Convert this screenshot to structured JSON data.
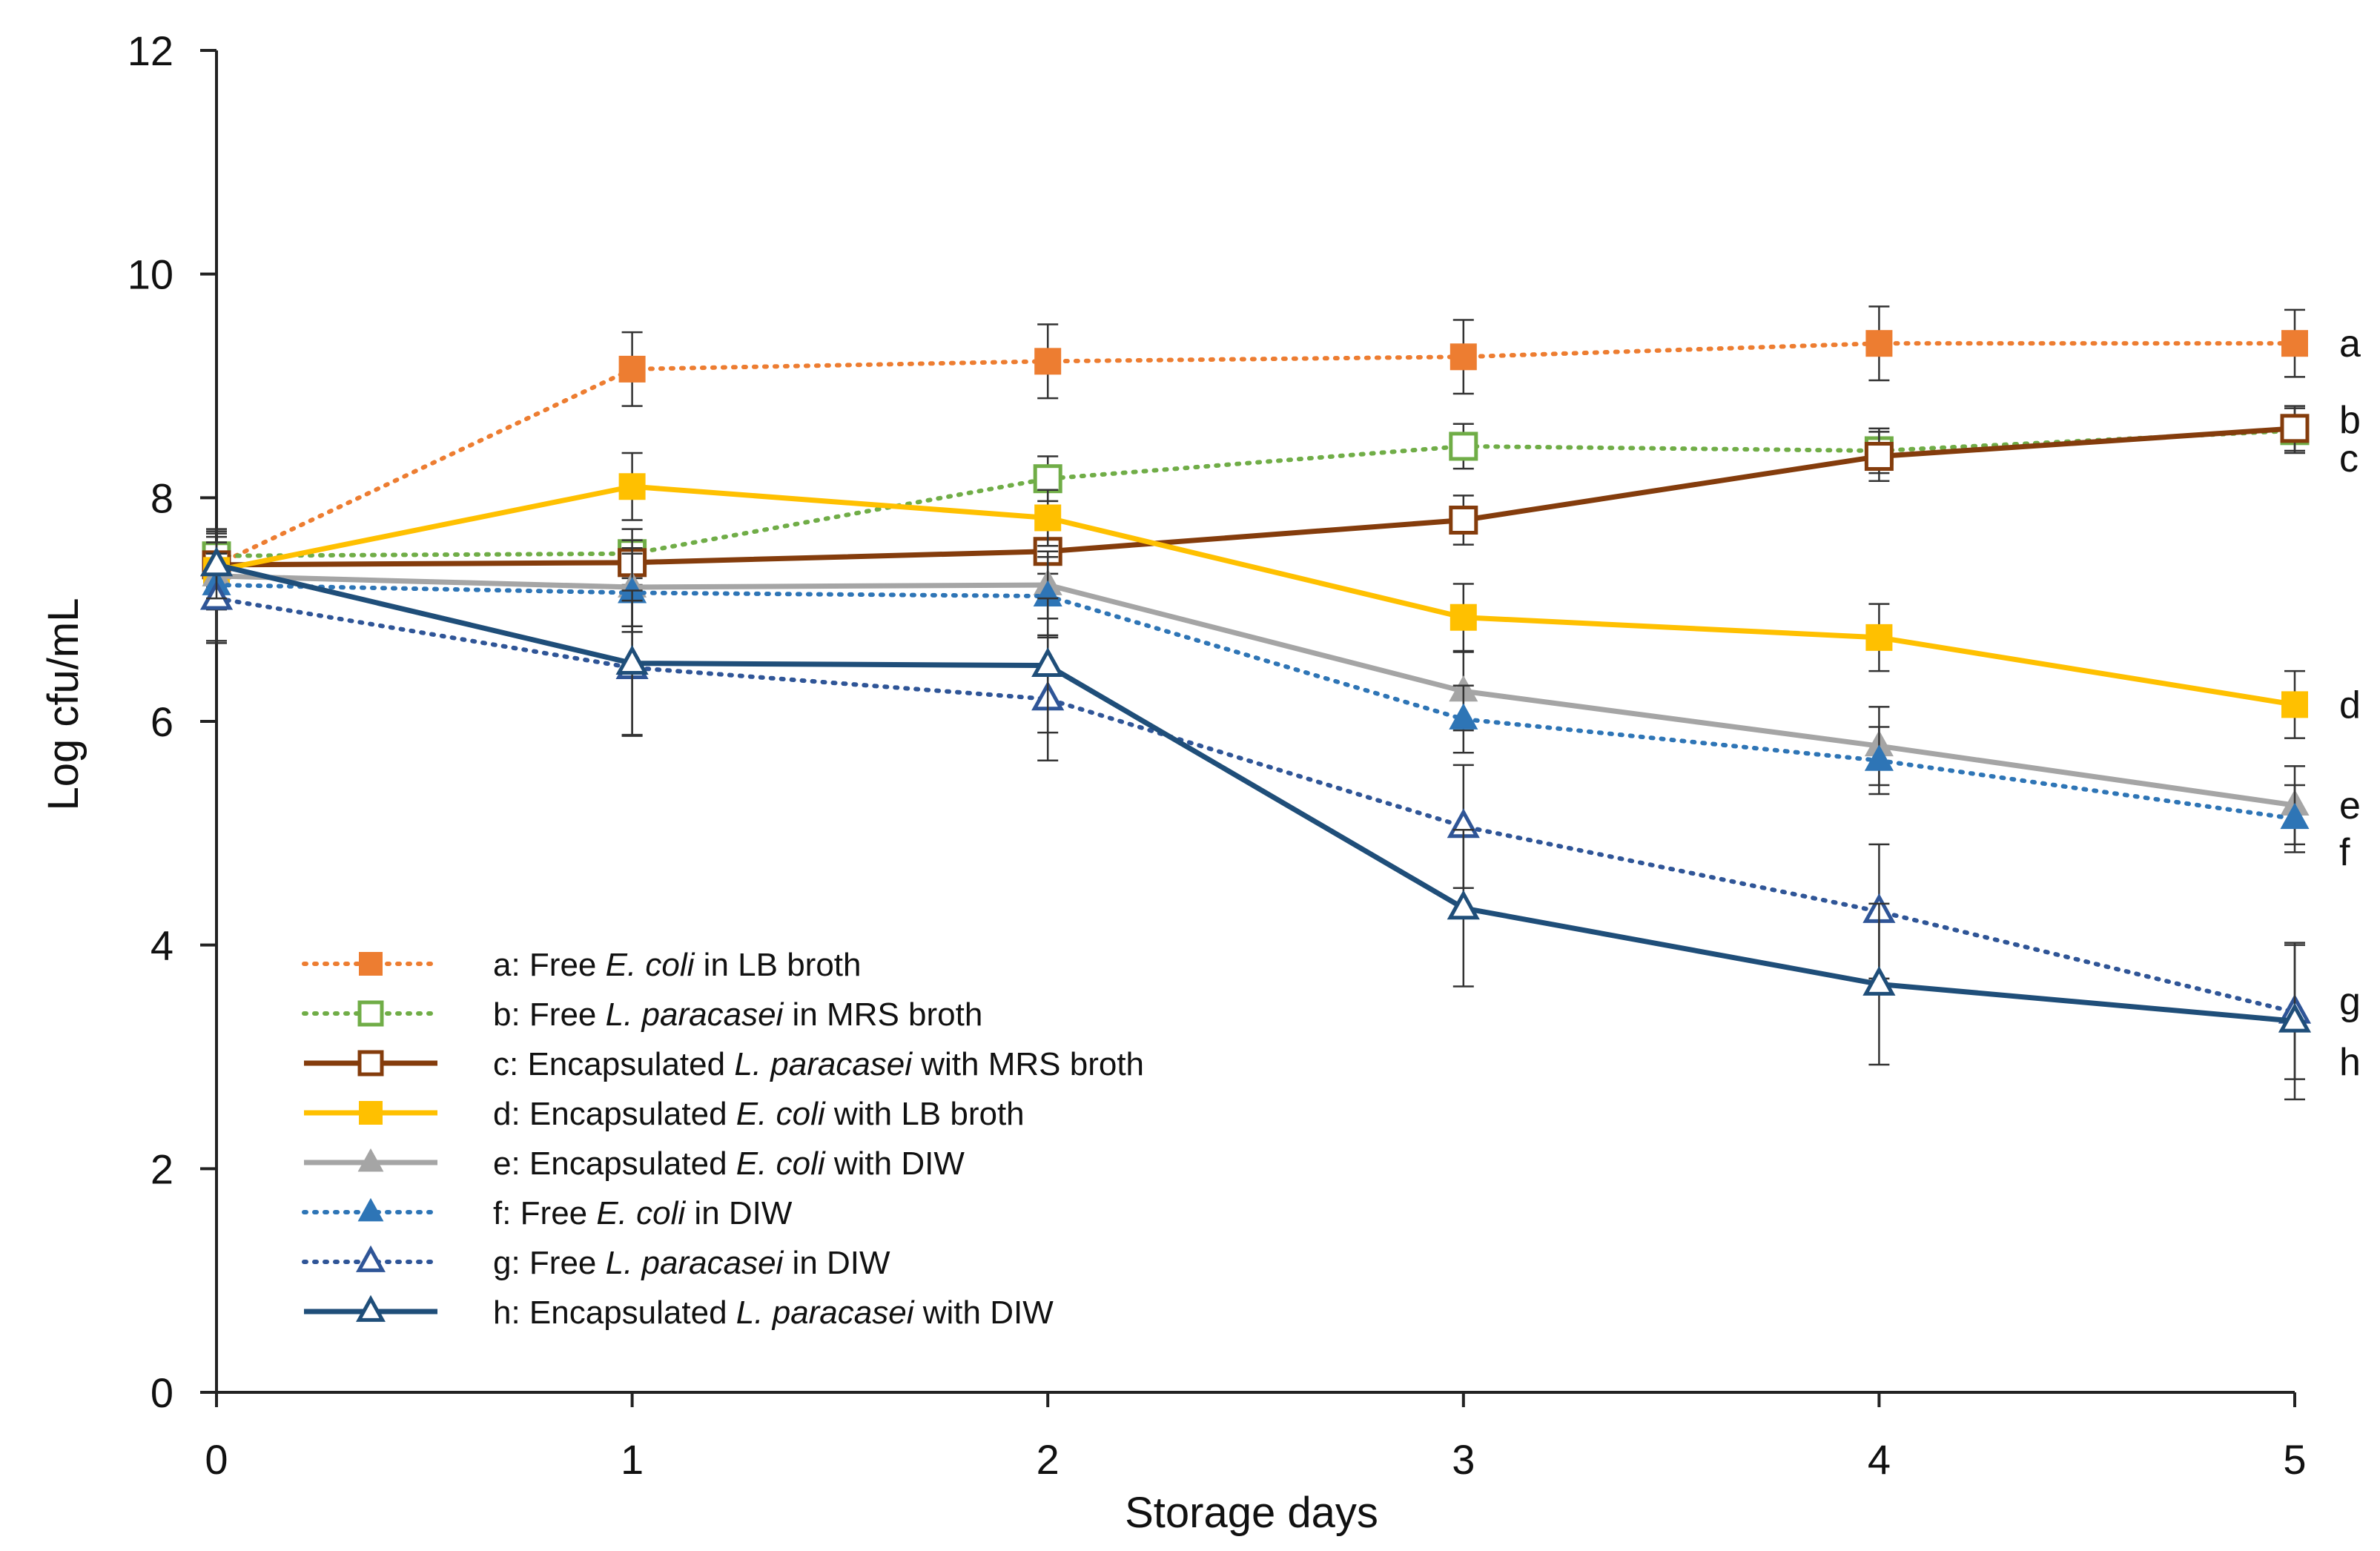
{
  "chart_data": {
    "type": "line",
    "xlabel": "Storage days",
    "ylabel": "Log cfu/mL",
    "x": [
      0,
      1,
      2,
      3,
      4,
      5
    ],
    "xlim": [
      0,
      5
    ],
    "ylim": [
      0,
      12
    ],
    "yticks": [
      0,
      2,
      4,
      6,
      8,
      10,
      12
    ],
    "grid": false,
    "legend_position": "bottom-left",
    "series": [
      {
        "id": "a",
        "prefix": "a: Free ",
        "organism": "E. coli",
        "suffix": " in LB broth",
        "end_label": "a",
        "color": "#ED7D31",
        "style": "dotted",
        "marker": "square-filled",
        "values": [
          7.4,
          9.15,
          9.22,
          9.26,
          9.38,
          9.38
        ],
        "errors": [
          0.15,
          0.33,
          0.33,
          0.33,
          0.33,
          0.3
        ]
      },
      {
        "id": "b",
        "prefix": "b: Free ",
        "organism": "L. paracasei",
        "suffix": " in MRS broth",
        "end_label": "b",
        "color": "#70AD47",
        "style": "dotted",
        "marker": "square-open",
        "values": [
          7.48,
          7.5,
          8.17,
          8.46,
          8.42,
          8.6
        ],
        "errors": [
          0.2,
          0.22,
          0.2,
          0.2,
          0.2,
          0.2
        ]
      },
      {
        "id": "c",
        "prefix": "c: Encapsulated ",
        "organism": "L. paracasei",
        "suffix": " with MRS broth",
        "end_label": "c",
        "color": "#843C0C",
        "style": "solid",
        "marker": "square-open",
        "values": [
          7.4,
          7.42,
          7.52,
          7.8,
          8.37,
          8.62
        ],
        "errors": [
          0.2,
          0.2,
          0.2,
          0.22,
          0.22,
          0.2
        ]
      },
      {
        "id": "d",
        "prefix": "d: Encapsulated ",
        "organism": "E. coli",
        "suffix": " with LB broth",
        "end_label": "d",
        "color": "#FFC000",
        "style": "solid",
        "marker": "square-filled",
        "values": [
          7.35,
          8.1,
          7.82,
          6.93,
          6.75,
          6.15
        ],
        "errors": [
          0.3,
          0.3,
          0.25,
          0.3,
          0.3,
          0.3
        ]
      },
      {
        "id": "e",
        "prefix": "e: Encapsulated ",
        "organism": "E. coli",
        "suffix": " with DIW",
        "end_label": "e",
        "color": "#A5A5A5",
        "style": "solid",
        "marker": "triangle-filled",
        "values": [
          7.3,
          7.2,
          7.22,
          6.27,
          5.78,
          5.25
        ],
        "errors": [
          0.3,
          0.35,
          0.3,
          0.35,
          0.35,
          0.35
        ]
      },
      {
        "id": "f",
        "prefix": "f: Free ",
        "organism": "E. coli",
        "suffix": " in DIW",
        "end_label": "f",
        "color": "#2E75B6",
        "style": "dotted",
        "marker": "triangle-filled",
        "values": [
          7.22,
          7.15,
          7.12,
          6.02,
          5.65,
          5.13
        ],
        "errors": [
          0.5,
          0.35,
          0.35,
          0.3,
          0.3,
          0.3
        ]
      },
      {
        "id": "g",
        "prefix": "g: Free ",
        "organism": "L. paracasei",
        "suffix": " in DIW",
        "end_label": "g",
        "color": "#2F5597",
        "style": "dotted",
        "marker": "triangle-open",
        "values": [
          7.1,
          6.48,
          6.2,
          5.06,
          4.3,
          3.4
        ],
        "errors": [
          0.4,
          0.6,
          0.55,
          0.55,
          0.6,
          0.6
        ]
      },
      {
        "id": "h",
        "prefix": "h: Encapsulated ",
        "organism": "L. paracasei",
        "suffix": " with DIW",
        "end_label": "h",
        "color": "#1F4E79",
        "style": "solid",
        "marker": "triangle-open",
        "values": [
          7.4,
          6.52,
          6.5,
          4.33,
          3.65,
          3.32
        ],
        "errors": [
          0.3,
          0.65,
          0.6,
          0.7,
          0.72,
          0.7
        ]
      }
    ]
  }
}
